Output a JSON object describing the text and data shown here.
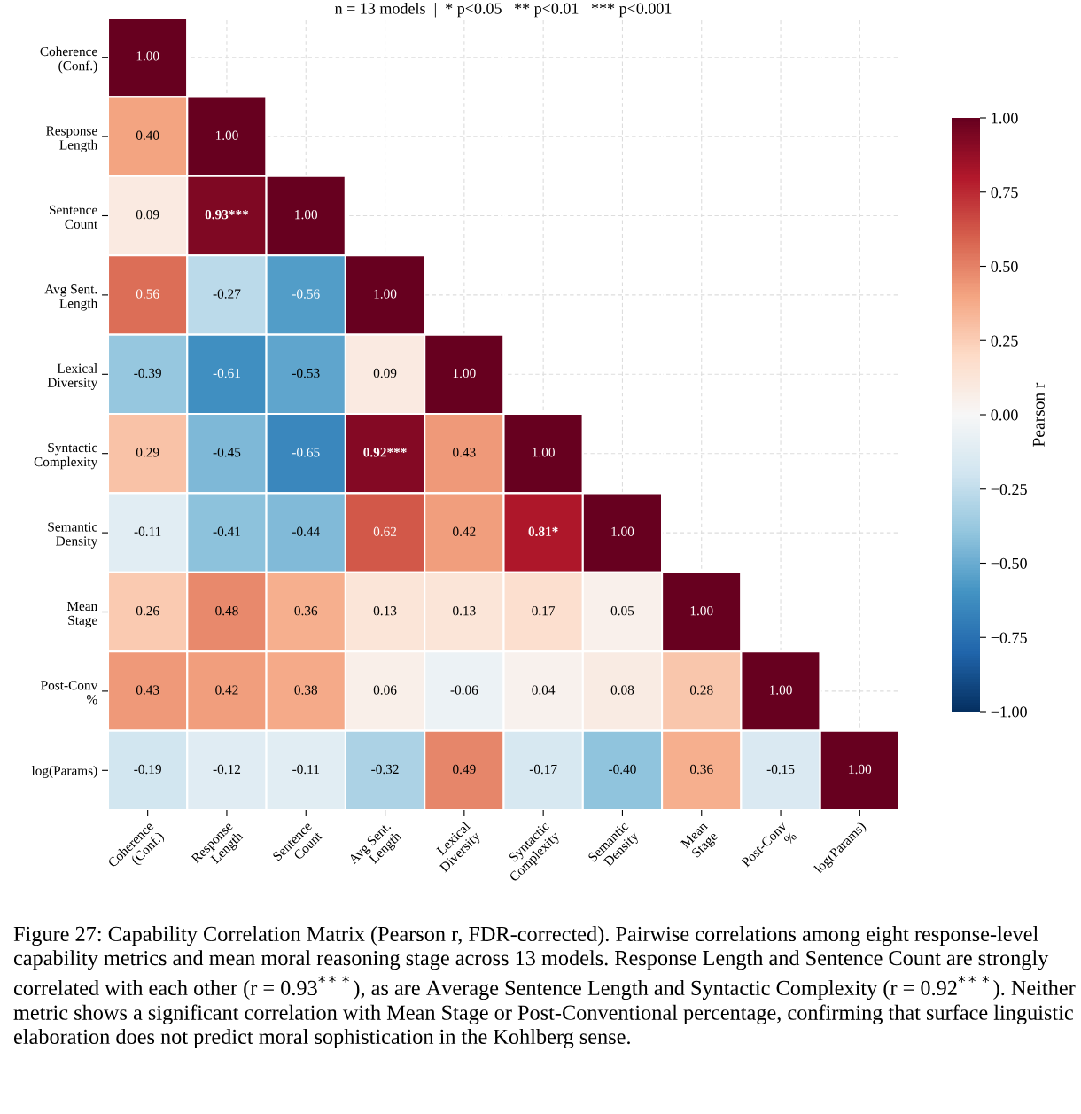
{
  "chart_data": {
    "type": "heatmap",
    "subtitle": "n = 13 models  |  * p<0.05   ** p<0.01   *** p<0.001",
    "categories": [
      "Coherence\n(Conf.)",
      "Response\nLength",
      "Sentence\nCount",
      "Avg Sent.\nLength",
      "Lexical\nDiversity",
      "Syntactic\nComplexity",
      "Semantic\nDensity",
      "Mean\nStage",
      "Post-Conv\n%",
      "log(Params)"
    ],
    "y_categories": [
      "Coherence\n(Conf.)",
      "Response\nLength",
      "Sentence\nCount",
      "Avg Sent.\nLength",
      "Lexical\nDiversity",
      "Syntactic\nComplexity",
      "Semantic\nDensity",
      "Mean\nStage",
      "Post-Conv\n%",
      "log(Params)"
    ],
    "cells": [
      [
        1.0,
        null,
        null,
        null,
        null,
        null,
        null,
        null,
        null,
        null
      ],
      [
        0.4,
        1.0,
        null,
        null,
        null,
        null,
        null,
        null,
        null,
        null
      ],
      [
        0.09,
        0.93,
        1.0,
        null,
        null,
        null,
        null,
        null,
        null,
        null
      ],
      [
        0.56,
        -0.27,
        -0.56,
        1.0,
        null,
        null,
        null,
        null,
        null,
        null
      ],
      [
        -0.39,
        -0.61,
        -0.53,
        0.09,
        1.0,
        null,
        null,
        null,
        null,
        null
      ],
      [
        0.29,
        -0.45,
        -0.65,
        0.92,
        0.43,
        1.0,
        null,
        null,
        null,
        null
      ],
      [
        -0.11,
        -0.41,
        -0.44,
        0.62,
        0.42,
        0.81,
        1.0,
        null,
        null,
        null
      ],
      [
        0.26,
        0.48,
        0.36,
        0.13,
        0.13,
        0.17,
        0.05,
        1.0,
        null,
        null
      ],
      [
        0.43,
        0.42,
        0.38,
        0.06,
        -0.06,
        0.04,
        0.08,
        0.28,
        1.0,
        null
      ],
      [
        -0.19,
        -0.12,
        -0.11,
        -0.32,
        0.49,
        -0.17,
        -0.4,
        0.36,
        -0.15,
        1.0
      ]
    ],
    "cell_labels": [
      [
        "1.00",
        null,
        null,
        null,
        null,
        null,
        null,
        null,
        null,
        null
      ],
      [
        "0.40",
        "1.00",
        null,
        null,
        null,
        null,
        null,
        null,
        null,
        null
      ],
      [
        "0.09",
        "0.93***",
        "1.00",
        null,
        null,
        null,
        null,
        null,
        null,
        null
      ],
      [
        "0.56",
        "-0.27",
        "-0.56",
        "1.00",
        null,
        null,
        null,
        null,
        null,
        null
      ],
      [
        "-0.39",
        "-0.61",
        "-0.53",
        "0.09",
        "1.00",
        null,
        null,
        null,
        null,
        null
      ],
      [
        "0.29",
        "-0.45",
        "-0.65",
        "0.92***",
        "0.43",
        "1.00",
        null,
        null,
        null,
        null
      ],
      [
        "-0.11",
        "-0.41",
        "-0.44",
        "0.62",
        "0.42",
        "0.81*",
        "1.00",
        null,
        null,
        null
      ],
      [
        "0.26",
        "0.48",
        "0.36",
        "0.13",
        "0.13",
        "0.17",
        "0.05",
        "1.00",
        null,
        null
      ],
      [
        "0.43",
        "0.42",
        "0.38",
        "0.06",
        "-0.06",
        "0.04",
        "0.08",
        "0.28",
        "1.00",
        null
      ],
      [
        "-0.19",
        "-0.12",
        "-0.11",
        "-0.32",
        "0.49",
        "-0.17",
        "-0.40",
        "0.36",
        "-0.15",
        "1.00"
      ]
    ],
    "clim": [
      -1.0,
      1.0
    ],
    "cticks": [
      {
        "value": -1.0,
        "label": "−1.00"
      },
      {
        "value": -0.75,
        "label": "−0.75"
      },
      {
        "value": -0.5,
        "label": "−0.50"
      },
      {
        "value": -0.25,
        "label": "−0.25"
      },
      {
        "value": 0.0,
        "label": "0.00"
      },
      {
        "value": 0.25,
        "label": "0.25"
      },
      {
        "value": 0.5,
        "label": "0.50"
      },
      {
        "value": 0.75,
        "label": "0.75"
      },
      {
        "value": 1.0,
        "label": "1.00"
      }
    ],
    "clabel": "Pearson r",
    "grid": true,
    "annotations": [
      "Figure 27: Capability Correlation Matrix (Pearson r, FDR-corrected). Pairwise correlations among eight response-level capability metrics and mean moral reasoning stage across 13 models. Response Length and Sentence Count are strongly correlated with each other (r = 0.93$^{***}$), as are Average Sentence Length and Syntactic Complexity (r = 0.92$^{***}$). Neither metric shows a significant correlation with Mean Stage or Post-Conventional percentage, confirming that surface linguistic elaboration does not predict moral sophistication in the Kohlberg sense."
    ]
  }
}
